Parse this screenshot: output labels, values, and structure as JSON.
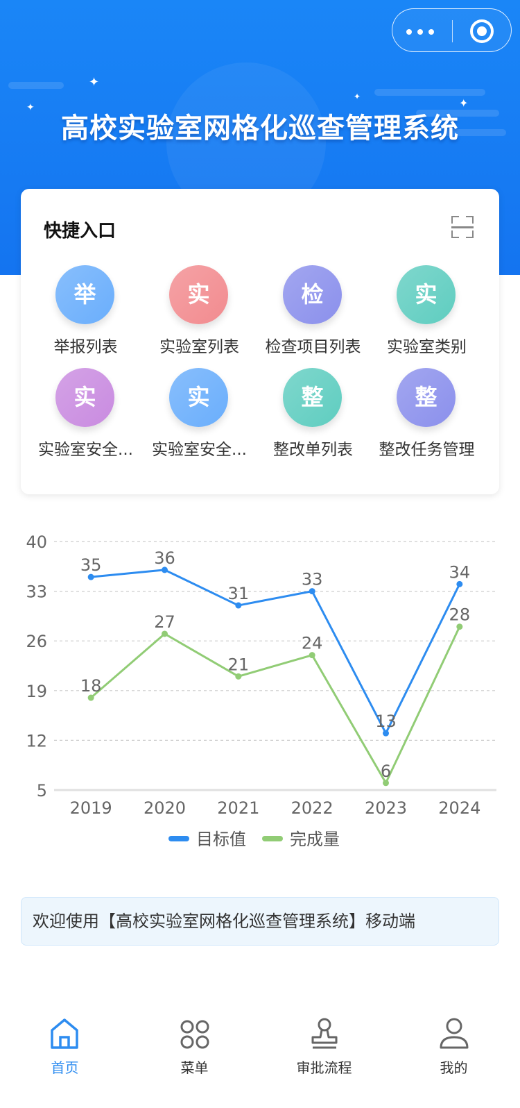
{
  "header": {
    "title": "高校实验室网格化巡查管理系统",
    "capsule": {
      "more_icon": "more-dots-icon",
      "close_icon": "target-close-icon"
    }
  },
  "quick_entry": {
    "title": "快捷入口",
    "scan_icon": "scan-icon",
    "items": [
      {
        "glyph": "举",
        "label": "举报列表",
        "color": "#6aaefc"
      },
      {
        "glyph": "实",
        "label": "实验室列表",
        "color": "#f28b8f"
      },
      {
        "glyph": "检",
        "label": "检查项目列表",
        "color": "#8b90ec"
      },
      {
        "glyph": "实",
        "label": "实验室类别",
        "color": "#5fcdc0"
      },
      {
        "glyph": "实",
        "label": "实验室安全...",
        "color": "#c98be0"
      },
      {
        "glyph": "实",
        "label": "实验室安全...",
        "color": "#6aaefc"
      },
      {
        "glyph": "整",
        "label": "整改单列表",
        "color": "#5fcdc0"
      },
      {
        "glyph": "整",
        "label": "整改任务管理",
        "color": "#8b90ec"
      }
    ]
  },
  "chart_data": {
    "type": "line",
    "categories": [
      "2019",
      "2020",
      "2021",
      "2022",
      "2023",
      "2024"
    ],
    "series": [
      {
        "name": "目标值",
        "values": [
          35,
          36,
          31,
          33,
          13,
          34
        ],
        "color": "#2d8cf0"
      },
      {
        "name": "完成量",
        "values": [
          18,
          27,
          21,
          24,
          6,
          28
        ],
        "color": "#91cc75"
      }
    ],
    "ylim": [
      5,
      40
    ],
    "yticks": [
      5,
      12,
      19,
      26,
      33,
      40
    ],
    "grid": true,
    "legend": "bottom",
    "data_labels": true
  },
  "notice": {
    "text": "欢迎使用【高校实验室网格化巡查管理系统】移动端"
  },
  "tabbar": {
    "items": [
      {
        "label": "首页",
        "icon": "home-icon",
        "active": true
      },
      {
        "label": "菜单",
        "icon": "menu-grid-icon",
        "active": false
      },
      {
        "label": "审批流程",
        "icon": "stamp-icon",
        "active": false
      },
      {
        "label": "我的",
        "icon": "user-icon",
        "active": false
      }
    ]
  }
}
